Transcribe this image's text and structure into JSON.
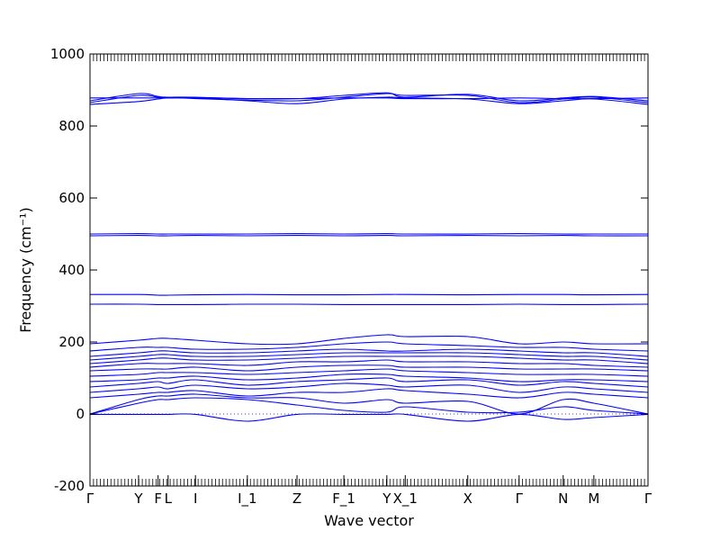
{
  "chart_data": {
    "type": "line",
    "title": "",
    "xlabel": "Wave vector",
    "ylabel": "Frequency (cm⁻¹)",
    "ylim": [
      -200,
      1000
    ],
    "yticks": [
      -200,
      0,
      200,
      400,
      600,
      800,
      1000
    ],
    "grid": false,
    "legend": "none",
    "line_color": "#0000ff",
    "zero_line_color": "#0000ff",
    "x_range": [
      0,
      100
    ],
    "k_points": [
      {
        "label": "Γ",
        "x": 0
      },
      {
        "label": "Y",
        "x": 8.7
      },
      {
        "label": "F",
        "x": 12.2
      },
      {
        "label": "L",
        "x": 14.0
      },
      {
        "label": "I",
        "x": 18.9
      },
      {
        "label": "I_1",
        "x": 28.2
      },
      {
        "label": "Z",
        "x": 37.1
      },
      {
        "label": "F_1",
        "x": 45.5
      },
      {
        "label": "Y",
        "x": 53.2
      },
      {
        "label": "X_1",
        "x": 56.5
      },
      {
        "label": "X",
        "x": 67.7
      },
      {
        "label": "Γ",
        "x": 76.9
      },
      {
        "label": "N",
        "x": 84.8
      },
      {
        "label": "M",
        "x": 90.3
      },
      {
        "label": "Γ",
        "x": 100
      }
    ],
    "series": [
      {
        "x": [
          0,
          8.7,
          12.2,
          14,
          18.9,
          28.2,
          37.1,
          45.5,
          53.2,
          56.5,
          67.7,
          76.9,
          84.8,
          90.3,
          100
        ],
        "values": [
          -1,
          -1,
          -1,
          -1,
          -1,
          -20,
          -1,
          -1,
          -1,
          -1,
          -20,
          -1,
          -15,
          -10,
          -1
        ]
      },
      {
        "x": [
          0,
          8.7,
          12.2,
          14,
          18.9,
          28.2,
          37.1,
          45.5,
          53.2,
          56.5,
          67.7,
          76.9,
          84.8,
          90.3,
          100
        ],
        "values": [
          0,
          30,
          40,
          40,
          45,
          40,
          25,
          10,
          5,
          20,
          5,
          5,
          20,
          10,
          0
        ]
      },
      {
        "x": [
          0,
          8.7,
          12.2,
          14,
          18.9,
          28.2,
          37.1,
          45.5,
          53.2,
          56.5,
          67.7,
          76.9,
          84.8,
          90.3,
          100
        ],
        "values": [
          0,
          40,
          50,
          50,
          55,
          45,
          45,
          30,
          40,
          30,
          35,
          0,
          40,
          30,
          0
        ]
      },
      {
        "x": [
          0,
          8.7,
          12.2,
          14,
          18.9,
          28.2,
          37.1,
          45.5,
          53.2,
          56.5,
          67.7,
          76.9,
          84.8,
          90.3,
          100
        ],
        "values": [
          45,
          55,
          60,
          60,
          65,
          50,
          60,
          60,
          70,
          65,
          55,
          45,
          60,
          55,
          45
        ]
      },
      {
        "x": [
          0,
          8.7,
          12.2,
          14,
          18.9,
          28.2,
          37.1,
          45.5,
          53.2,
          56.5,
          67.7,
          76.9,
          84.8,
          90.3,
          100
        ],
        "values": [
          60,
          70,
          75,
          70,
          80,
          70,
          75,
          85,
          80,
          75,
          80,
          60,
          75,
          70,
          60
        ]
      },
      {
        "x": [
          0,
          8.7,
          12.2,
          14,
          18.9,
          28.2,
          37.1,
          45.5,
          53.2,
          56.5,
          67.7,
          76.9,
          84.8,
          90.3,
          100
        ],
        "values": [
          75,
          85,
          90,
          85,
          95,
          80,
          90,
          95,
          100,
          90,
          95,
          80,
          90,
          85,
          75
        ]
      },
      {
        "x": [
          0,
          8.7,
          12.2,
          14,
          18.9,
          28.2,
          37.1,
          45.5,
          53.2,
          56.5,
          67.7,
          76.9,
          84.8,
          90.3,
          100
        ],
        "values": [
          90,
          95,
          100,
          100,
          105,
          95,
          100,
          110,
          110,
          105,
          100,
          90,
          95,
          95,
          90
        ]
      },
      {
        "x": [
          0,
          8.7,
          12.2,
          14,
          18.9,
          28.2,
          37.1,
          45.5,
          53.2,
          56.5,
          67.7,
          76.9,
          84.8,
          90.3,
          100
        ],
        "values": [
          105,
          110,
          115,
          115,
          115,
          110,
          115,
          120,
          125,
          120,
          115,
          110,
          110,
          110,
          105
        ]
      },
      {
        "x": [
          0,
          8.7,
          12.2,
          14,
          18.9,
          28.2,
          37.1,
          45.5,
          53.2,
          56.5,
          67.7,
          76.9,
          84.8,
          90.3,
          100
        ],
        "values": [
          120,
          125,
          125,
          125,
          130,
          120,
          130,
          135,
          135,
          130,
          130,
          125,
          125,
          125,
          120
        ]
      },
      {
        "x": [
          0,
          8.7,
          12.2,
          14,
          18.9,
          28.2,
          37.1,
          45.5,
          53.2,
          56.5,
          67.7,
          76.9,
          84.8,
          90.3,
          100
        ],
        "values": [
          130,
          140,
          140,
          140,
          140,
          135,
          145,
          145,
          150,
          145,
          145,
          140,
          140,
          135,
          130
        ]
      },
      {
        "x": [
          0,
          8.7,
          12.2,
          14,
          18.9,
          28.2,
          37.1,
          45.5,
          53.2,
          56.5,
          67.7,
          76.9,
          84.8,
          90.3,
          100
        ],
        "values": [
          140,
          150,
          155,
          155,
          150,
          150,
          155,
          160,
          160,
          160,
          160,
          155,
          150,
          150,
          140
        ]
      },
      {
        "x": [
          0,
          8.7,
          12.2,
          14,
          18.9,
          28.2,
          37.1,
          45.5,
          53.2,
          56.5,
          67.7,
          76.9,
          84.8,
          90.3,
          100
        ],
        "values": [
          150,
          160,
          165,
          165,
          160,
          160,
          165,
          170,
          170,
          170,
          170,
          165,
          160,
          160,
          150
        ]
      },
      {
        "x": [
          0,
          8.7,
          12.2,
          14,
          18.9,
          28.2,
          37.1,
          45.5,
          53.2,
          56.5,
          67.7,
          76.9,
          84.8,
          90.3,
          100
        ],
        "values": [
          160,
          170,
          175,
          175,
          170,
          170,
          175,
          180,
          175,
          175,
          180,
          175,
          170,
          170,
          160
        ]
      },
      {
        "x": [
          0,
          8.7,
          12.2,
          14,
          18.9,
          28.2,
          37.1,
          45.5,
          53.2,
          56.5,
          67.7,
          76.9,
          84.8,
          90.3,
          100
        ],
        "values": [
          175,
          185,
          185,
          185,
          180,
          180,
          185,
          195,
          200,
          195,
          190,
          185,
          185,
          180,
          175
        ]
      },
      {
        "x": [
          0,
          8.7,
          12.2,
          14,
          18.9,
          28.2,
          37.1,
          45.5,
          53.2,
          56.5,
          67.7,
          76.9,
          84.8,
          90.3,
          100
        ],
        "values": [
          195,
          205,
          210,
          210,
          205,
          195,
          195,
          210,
          220,
          215,
          215,
          195,
          200,
          195,
          195
        ]
      },
      {
        "x": [
          0,
          8.7,
          12.2,
          14,
          18.9,
          28.2,
          37.1,
          45.5,
          53.2,
          56.5,
          67.7,
          76.9,
          84.8,
          90.3,
          100
        ],
        "values": [
          305,
          305,
          304,
          304,
          304,
          305,
          305,
          304,
          304,
          304,
          304,
          305,
          304,
          304,
          305
        ]
      },
      {
        "x": [
          0,
          8.7,
          12.2,
          14,
          18.9,
          28.2,
          37.1,
          45.5,
          53.2,
          56.5,
          67.7,
          76.9,
          84.8,
          90.3,
          100
        ],
        "values": [
          332,
          332,
          330,
          330,
          331,
          332,
          331,
          331,
          332,
          332,
          331,
          332,
          332,
          331,
          332
        ]
      },
      {
        "x": [
          0,
          8.7,
          12.2,
          14,
          18.9,
          28.2,
          37.1,
          45.5,
          53.2,
          56.5,
          67.7,
          76.9,
          84.8,
          90.3,
          100
        ],
        "values": [
          495,
          496,
          495,
          495,
          496,
          495,
          496,
          495,
          496,
          495,
          496,
          495,
          496,
          495,
          495
        ]
      },
      {
        "x": [
          0,
          8.7,
          12.2,
          14,
          18.9,
          28.2,
          37.1,
          45.5,
          53.2,
          56.5,
          67.7,
          76.9,
          84.8,
          90.3,
          100
        ],
        "values": [
          500,
          501,
          500,
          500,
          500,
          500,
          501,
          500,
          501,
          500,
          500,
          501,
          500,
          500,
          500
        ]
      },
      {
        "x": [
          0,
          8.7,
          12.2,
          14,
          18.9,
          28.2,
          37.1,
          45.5,
          53.2,
          56.5,
          67.7,
          76.9,
          84.8,
          90.3,
          100
        ],
        "values": [
          860,
          868,
          875,
          878,
          878,
          870,
          862,
          875,
          880,
          878,
          875,
          862,
          870,
          875,
          860
        ]
      },
      {
        "x": [
          0,
          8.7,
          12.2,
          14,
          18.9,
          28.2,
          37.1,
          45.5,
          53.2,
          56.5,
          67.7,
          76.9,
          84.8,
          90.3,
          100
        ],
        "values": [
          865,
          885,
          880,
          880,
          876,
          872,
          870,
          880,
          890,
          885,
          885,
          865,
          875,
          880,
          865
        ]
      },
      {
        "x": [
          0,
          8.7,
          12.2,
          14,
          18.9,
          28.2,
          37.1,
          45.5,
          53.2,
          56.5,
          67.7,
          76.9,
          84.8,
          90.3,
          100
        ],
        "values": [
          870,
          890,
          882,
          880,
          880,
          876,
          876,
          885,
          892,
          880,
          888,
          870,
          878,
          882,
          870
        ]
      },
      {
        "x": [
          0,
          8.7,
          12.2,
          14,
          18.9,
          28.2,
          37.1,
          45.5,
          53.2,
          56.5,
          67.7,
          76.9,
          84.8,
          90.3,
          100
        ],
        "values": [
          878,
          878,
          878,
          878,
          878,
          876,
          876,
          878,
          878,
          876,
          876,
          878,
          876,
          876,
          878
        ]
      }
    ]
  }
}
